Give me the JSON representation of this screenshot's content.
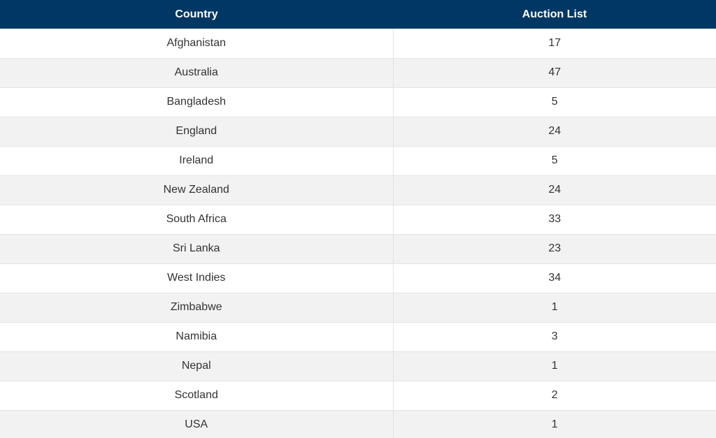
{
  "table": {
    "headers": [
      "Country",
      "Auction List"
    ],
    "rows": [
      {
        "country": "Afghanistan",
        "count": "17"
      },
      {
        "country": "Australia",
        "count": "47"
      },
      {
        "country": "Bangladesh",
        "count": "5"
      },
      {
        "country": "England",
        "count": "24"
      },
      {
        "country": "Ireland",
        "count": "5"
      },
      {
        "country": "New Zealand",
        "count": "24"
      },
      {
        "country": "South Africa",
        "count": "33"
      },
      {
        "country": "Sri Lanka",
        "count": "23"
      },
      {
        "country": "West Indies",
        "count": "34"
      },
      {
        "country": "Zimbabwe",
        "count": "1"
      },
      {
        "country": "Namibia",
        "count": "3"
      },
      {
        "country": "Nepal",
        "count": "1"
      },
      {
        "country": "Scotland",
        "count": "2"
      },
      {
        "country": "USA",
        "count": "1"
      }
    ]
  },
  "colors": {
    "header_bg": "#003764",
    "header_text": "#ffffff",
    "row_alt_bg": "#f2f2f2",
    "cell_text": "#333333",
    "border": "#e3e3e3"
  }
}
